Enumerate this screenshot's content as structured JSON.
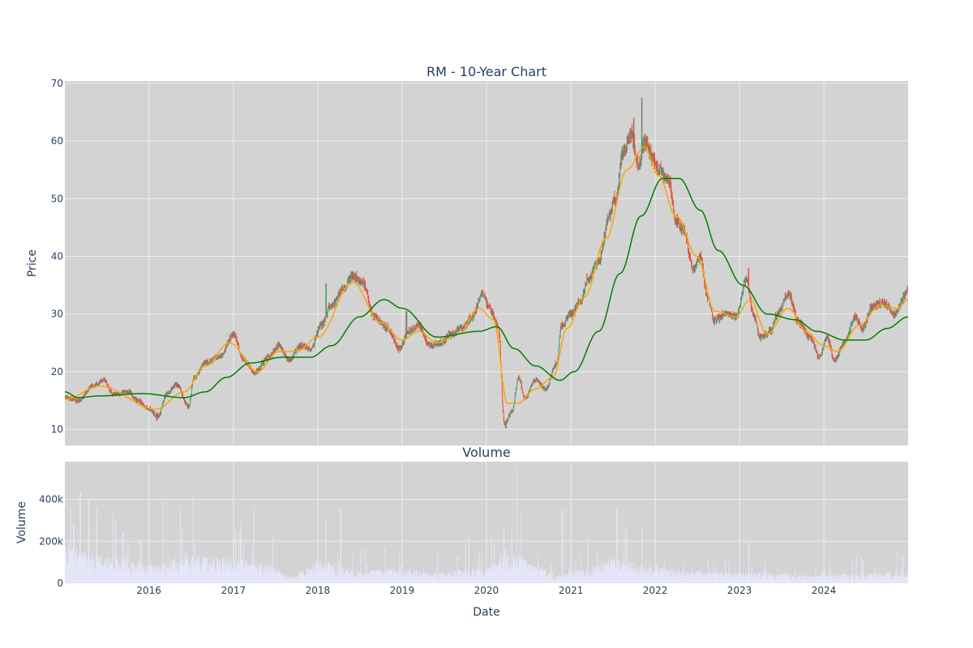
{
  "chart_data": {
    "type": "candlestick",
    "title": "RM - 10-Year Chart",
    "colors": {
      "plot_bg": "#d3d3d3",
      "grid": "#eeeeee",
      "increasing": "#3d9970",
      "decreasing": "#ff4136",
      "ma_short": "#ffa500",
      "ma_long": "#008000",
      "volume": "#e6e6fa",
      "text": "#2a3f5f"
    },
    "price_panel": {
      "ylabel": "Price",
      "ylim": [
        7.2,
        70.4
      ],
      "yticks": [
        10,
        20,
        30,
        40,
        50,
        60,
        70
      ],
      "grid": true,
      "series": [
        {
          "kind": "candlestick"
        },
        {
          "kind": "moving_average_short"
        },
        {
          "kind": "moving_average_long"
        }
      ],
      "close_anchors": [
        [
          "2015-01-02",
          15.5
        ],
        [
          "2015-03-01",
          15.0
        ],
        [
          "2015-05-01",
          17.5
        ],
        [
          "2015-06-20",
          18.5
        ],
        [
          "2015-08-01",
          16.0
        ],
        [
          "2015-10-01",
          16.5
        ],
        [
          "2015-11-15",
          15.0
        ],
        [
          "2016-01-01",
          13.5
        ],
        [
          "2016-02-10",
          12.3
        ],
        [
          "2016-03-15",
          16.0
        ],
        [
          "2016-05-01",
          17.8
        ],
        [
          "2016-06-20",
          14.0
        ],
        [
          "2016-07-15",
          19.0
        ],
        [
          "2016-09-01",
          21.5
        ],
        [
          "2016-11-01",
          22.5
        ],
        [
          "2017-01-01",
          26.5
        ],
        [
          "2017-02-15",
          22.0
        ],
        [
          "2017-04-01",
          19.8
        ],
        [
          "2017-06-01",
          22.5
        ],
        [
          "2017-07-15",
          24.5
        ],
        [
          "2017-09-01",
          22.0
        ],
        [
          "2017-10-15",
          24.5
        ],
        [
          "2017-12-01",
          24.0
        ],
        [
          "2018-01-15",
          28.0
        ],
        [
          "2018-03-01",
          31.5
        ],
        [
          "2018-04-15",
          34.0
        ],
        [
          "2018-06-01",
          36.5
        ],
        [
          "2018-07-15",
          35.5
        ],
        [
          "2018-09-01",
          29.5
        ],
        [
          "2018-11-01",
          27.5
        ],
        [
          "2018-12-20",
          24.0
        ],
        [
          "2019-02-01",
          27.0
        ],
        [
          "2019-03-15",
          28.0
        ],
        [
          "2019-05-01",
          24.5
        ],
        [
          "2019-06-15",
          25.0
        ],
        [
          "2019-08-01",
          26.5
        ],
        [
          "2019-09-15",
          27.5
        ],
        [
          "2019-11-01",
          29.5
        ],
        [
          "2019-12-15",
          33.5
        ],
        [
          "2020-01-15",
          31.0
        ],
        [
          "2020-02-20",
          28.0
        ],
        [
          "2020-03-20",
          11.0
        ],
        [
          "2020-04-20",
          13.0
        ],
        [
          "2020-05-20",
          19.0
        ],
        [
          "2020-06-15",
          15.5
        ],
        [
          "2020-08-01",
          18.5
        ],
        [
          "2020-09-15",
          17.0
        ],
        [
          "2020-11-01",
          21.5
        ],
        [
          "2020-11-20",
          28.0
        ],
        [
          "2021-01-01",
          30.0
        ],
        [
          "2021-02-15",
          32.5
        ],
        [
          "2021-03-15",
          36.0
        ],
        [
          "2021-05-01",
          39.0
        ],
        [
          "2021-06-15",
          47.0
        ],
        [
          "2021-07-15",
          50.0
        ],
        [
          "2021-08-15",
          58.0
        ],
        [
          "2021-09-20",
          61.0
        ],
        [
          "2021-10-20",
          56.0
        ],
        [
          "2021-11-20",
          60.0
        ],
        [
          "2021-12-20",
          57.0
        ],
        [
          "2022-01-15",
          55.0
        ],
        [
          "2022-03-01",
          53.0
        ],
        [
          "2022-04-01",
          46.0
        ],
        [
          "2022-05-01",
          45.0
        ],
        [
          "2022-06-15",
          38.0
        ],
        [
          "2022-07-15",
          40.0
        ],
        [
          "2022-08-15",
          33.0
        ],
        [
          "2022-09-15",
          29.0
        ],
        [
          "2022-11-01",
          30.0
        ],
        [
          "2022-12-15",
          29.5
        ],
        [
          "2023-02-01",
          36.0
        ],
        [
          "2023-03-01",
          30.0
        ],
        [
          "2023-04-01",
          26.0
        ],
        [
          "2023-05-15",
          27.0
        ],
        [
          "2023-06-15",
          30.0
        ],
        [
          "2023-08-01",
          33.5
        ],
        [
          "2023-09-15",
          28.5
        ],
        [
          "2023-11-01",
          26.0
        ],
        [
          "2023-12-15",
          22.5
        ],
        [
          "2024-01-15",
          26.0
        ],
        [
          "2024-02-15",
          22.0
        ],
        [
          "2024-04-01",
          25.0
        ],
        [
          "2024-05-15",
          29.5
        ],
        [
          "2024-06-15",
          27.5
        ],
        [
          "2024-08-01",
          31.5
        ],
        [
          "2024-09-15",
          32.0
        ],
        [
          "2024-11-01",
          30.0
        ],
        [
          "2024-12-31",
          34.0
        ]
      ],
      "ma_short_anchors": [
        [
          "2015-01-02",
          15.2
        ],
        [
          "2015-06-01",
          17.5
        ],
        [
          "2016-02-01",
          13.5
        ],
        [
          "2016-06-01",
          16.5
        ],
        [
          "2016-09-01",
          21.0
        ],
        [
          "2016-12-15",
          25.0
        ],
        [
          "2017-04-15",
          20.0
        ],
        [
          "2017-07-15",
          23.5
        ],
        [
          "2017-10-01",
          23.5
        ],
        [
          "2018-01-01",
          26.0
        ],
        [
          "2018-06-01",
          35.5
        ],
        [
          "2018-10-01",
          28.5
        ],
        [
          "2019-01-01",
          25.5
        ],
        [
          "2019-03-15",
          27.0
        ],
        [
          "2019-06-01",
          25.0
        ],
        [
          "2019-09-01",
          26.5
        ],
        [
          "2019-12-01",
          31.0
        ],
        [
          "2020-02-01",
          29.0
        ],
        [
          "2020-04-01",
          14.5
        ],
        [
          "2020-05-15",
          14.5
        ],
        [
          "2020-08-01",
          17.0
        ],
        [
          "2020-10-15",
          19.0
        ],
        [
          "2020-12-15",
          27.5
        ],
        [
          "2021-03-01",
          33.0
        ],
        [
          "2021-06-01",
          43.0
        ],
        [
          "2021-09-01",
          55.0
        ],
        [
          "2021-11-15",
          59.0
        ],
        [
          "2022-01-15",
          54.0
        ],
        [
          "2022-04-01",
          47.0
        ],
        [
          "2022-07-01",
          40.0
        ],
        [
          "2022-09-15",
          30.5
        ],
        [
          "2022-12-15",
          29.5
        ],
        [
          "2023-02-15",
          32.5
        ],
        [
          "2023-05-01",
          26.5
        ],
        [
          "2023-08-01",
          31.0
        ],
        [
          "2023-10-15",
          27.0
        ],
        [
          "2024-01-01",
          24.5
        ],
        [
          "2024-03-01",
          23.5
        ],
        [
          "2024-06-01",
          28.0
        ],
        [
          "2024-09-01",
          31.5
        ],
        [
          "2024-11-15",
          31.0
        ],
        [
          "2024-12-31",
          32.5
        ]
      ],
      "ma_long_anchors": [
        [
          "2015-01-02",
          16.5
        ],
        [
          "2015-03-01",
          15.5
        ],
        [
          "2015-06-01",
          15.8
        ],
        [
          "2015-12-01",
          16.2
        ],
        [
          "2016-06-01",
          15.5
        ],
        [
          "2016-09-01",
          16.5
        ],
        [
          "2016-12-01",
          19.0
        ],
        [
          "2017-03-15",
          21.5
        ],
        [
          "2017-08-01",
          22.5
        ],
        [
          "2017-12-01",
          22.5
        ],
        [
          "2018-03-01",
          24.5
        ],
        [
          "2018-07-01",
          29.5
        ],
        [
          "2018-10-15",
          32.5
        ],
        [
          "2019-01-01",
          31.0
        ],
        [
          "2019-06-01",
          26.0
        ],
        [
          "2019-12-01",
          27.0
        ],
        [
          "2020-02-15",
          27.8
        ],
        [
          "2020-05-01",
          24.0
        ],
        [
          "2020-08-01",
          21.0
        ],
        [
          "2020-11-15",
          18.5
        ],
        [
          "2021-01-15",
          20.0
        ],
        [
          "2021-05-01",
          27.0
        ],
        [
          "2021-08-01",
          37.0
        ],
        [
          "2021-11-01",
          47.0
        ],
        [
          "2022-02-01",
          53.5
        ],
        [
          "2022-04-15",
          53.5
        ],
        [
          "2022-07-15",
          48.0
        ],
        [
          "2022-10-01",
          41.0
        ],
        [
          "2023-01-15",
          35.0
        ],
        [
          "2023-05-01",
          30.0
        ],
        [
          "2023-09-01",
          29.0
        ],
        [
          "2023-12-01",
          27.0
        ],
        [
          "2024-04-01",
          25.5
        ],
        [
          "2024-07-01",
          25.5
        ],
        [
          "2024-10-01",
          27.5
        ],
        [
          "2024-12-31",
          29.5
        ]
      ],
      "spikes": [
        [
          "2018-02-05",
          35.3,
          31.0
        ],
        [
          "2019-01-20",
          30.5,
          26.0
        ],
        [
          "2021-11-05",
          67.5,
          58.0
        ],
        [
          "2021-10-01",
          64.0,
          57.0
        ],
        [
          "2023-02-10",
          38.0,
          33.0
        ],
        [
          "2020-03-25",
          10.2,
          13.0
        ],
        [
          "2016-02-05",
          11.5,
          13.0
        ]
      ]
    },
    "volume_panel": {
      "title": "Volume",
      "ylabel": "Volume",
      "ylim": [
        0,
        580000
      ],
      "yticks": [
        0,
        200000,
        400000
      ],
      "ytick_labels": [
        "0",
        "200k",
        "400k"
      ],
      "base_level_anchors": [
        [
          "2015-01-02",
          120000
        ],
        [
          "2015-06-01",
          90000
        ],
        [
          "2016-01-01",
          60000
        ],
        [
          "2016-06-01",
          90000
        ],
        [
          "2017-01-01",
          80000
        ],
        [
          "2017-06-01",
          60000
        ],
        [
          "2017-09-01",
          25000
        ],
        [
          "2018-02-01",
          70000
        ],
        [
          "2018-06-01",
          40000
        ],
        [
          "2019-01-01",
          45000
        ],
        [
          "2019-06-01",
          35000
        ],
        [
          "2020-01-01",
          50000
        ],
        [
          "2020-04-01",
          110000
        ],
        [
          "2020-08-01",
          60000
        ],
        [
          "2020-11-01",
          25000
        ],
        [
          "2021-03-01",
          45000
        ],
        [
          "2021-07-01",
          80000
        ],
        [
          "2021-11-01",
          60000
        ],
        [
          "2022-06-01",
          40000
        ],
        [
          "2022-12-01",
          35000
        ],
        [
          "2023-06-01",
          35000
        ],
        [
          "2023-12-01",
          25000
        ],
        [
          "2024-06-01",
          30000
        ],
        [
          "2024-12-31",
          40000
        ]
      ],
      "spikes": [
        [
          "2015-03-10",
          440000
        ],
        [
          "2015-02-10",
          290000
        ],
        [
          "2015-04-15",
          400000
        ],
        [
          "2015-05-20",
          270000
        ],
        [
          "2015-08-10",
          300000
        ],
        [
          "2015-09-10",
          240000
        ],
        [
          "2016-03-05",
          390000
        ],
        [
          "2016-05-15",
          370000
        ],
        [
          "2016-07-10",
          425000
        ],
        [
          "2017-04-01",
          360000
        ],
        [
          "2017-02-01",
          240000
        ],
        [
          "2018-02-05",
          310000
        ],
        [
          "2018-04-10",
          350000
        ],
        [
          "2020-05-10",
          555000
        ],
        [
          "2020-04-20",
          250000
        ],
        [
          "2020-11-25",
          350000
        ],
        [
          "2021-07-20",
          360000
        ],
        [
          "2021-11-05",
          265000
        ],
        [
          "2023-02-10",
          200000
        ],
        [
          "2024-05-20",
          130000
        ]
      ]
    },
    "x_axis": {
      "xlabel": "Date",
      "start": "2015-01-02",
      "end": "2024-12-31",
      "tick_labels": [
        "2016",
        "2017",
        "2018",
        "2019",
        "2020",
        "2021",
        "2022",
        "2023",
        "2024"
      ],
      "tick_dates": [
        "2016-01-01",
        "2017-01-01",
        "2018-01-01",
        "2019-01-01",
        "2020-01-01",
        "2021-01-01",
        "2022-01-01",
        "2023-01-01",
        "2024-01-01"
      ]
    }
  }
}
